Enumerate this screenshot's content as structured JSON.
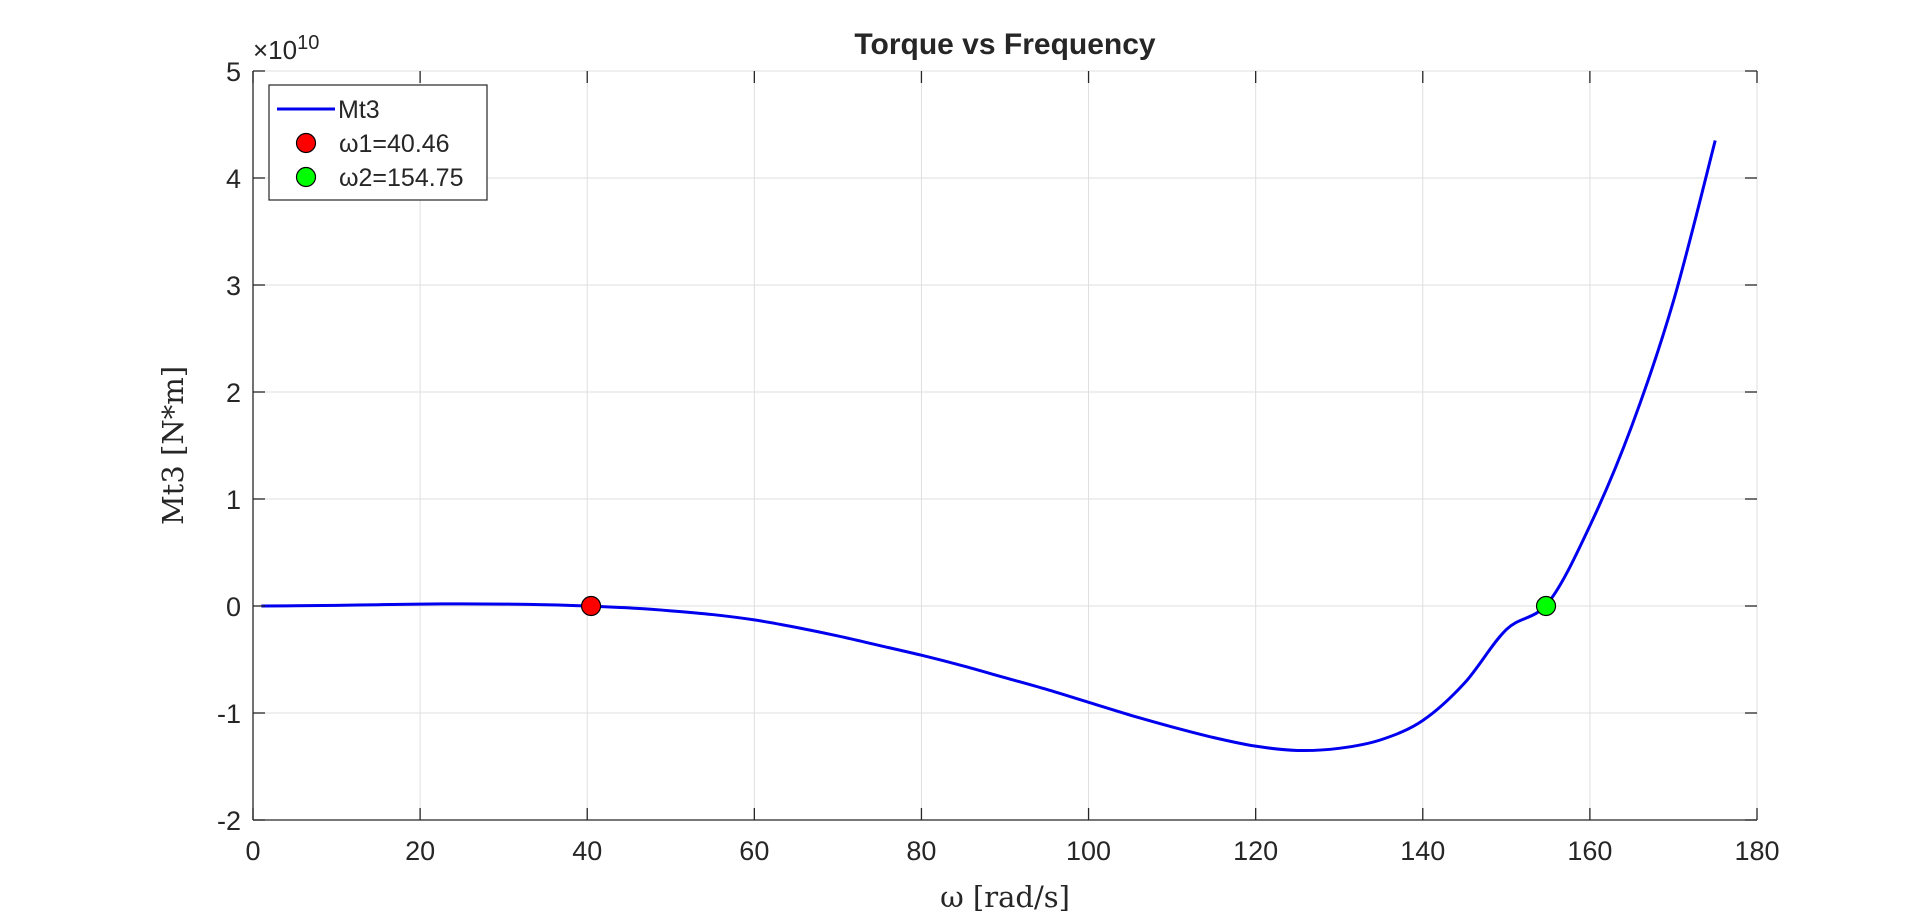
{
  "chart_data": {
    "type": "line",
    "title": "Torque vs Frequency",
    "xlabel": "ω [rad/s]",
    "ylabel": "Mt3 [N*m]",
    "exponent_label": {
      "base": "×10",
      "power": "10"
    },
    "xlim": [
      0,
      180
    ],
    "ylim": [
      -2,
      5
    ],
    "xticks": [
      0,
      20,
      40,
      60,
      80,
      100,
      120,
      140,
      160,
      180
    ],
    "yticks": [
      -2,
      -1,
      0,
      1,
      2,
      3,
      4,
      5
    ],
    "grid": true,
    "legend_position": "top-left",
    "series": [
      {
        "name": "Mt3",
        "color": "#0000ee",
        "x": [
          1,
          5,
          10,
          15,
          20,
          25,
          30,
          35,
          40,
          45,
          50,
          55,
          60,
          65,
          70,
          75,
          80,
          85,
          90,
          95,
          100,
          105,
          110,
          115,
          120,
          125,
          130,
          135,
          140,
          145,
          150,
          155,
          160,
          165,
          170,
          175
        ],
        "y": [
          0.0,
          0.002,
          0.006,
          0.012,
          0.018,
          0.02,
          0.018,
          0.012,
          0.0,
          -0.018,
          -0.045,
          -0.08,
          -0.13,
          -0.2,
          -0.28,
          -0.37,
          -0.46,
          -0.56,
          -0.67,
          -0.78,
          -0.9,
          -1.02,
          -1.13,
          -1.23,
          -1.31,
          -1.35,
          -1.33,
          -1.25,
          -1.07,
          -0.72,
          -0.22,
          0.03,
          0.75,
          1.68,
          2.85,
          4.35
        ]
      },
      {
        "name": "ω1=40.46",
        "type": "marker",
        "color": "#ff0000",
        "x": [
          40.46
        ],
        "y": [
          0
        ]
      },
      {
        "name": "ω2=154.75",
        "type": "marker",
        "color": "#00ff00",
        "x": [
          154.75
        ],
        "y": [
          0
        ]
      }
    ]
  }
}
